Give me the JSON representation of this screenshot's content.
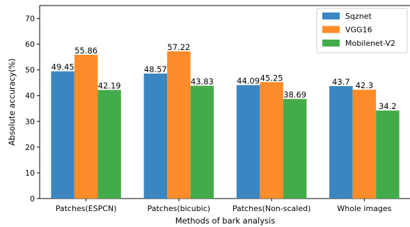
{
  "chart_data": {
    "type": "bar",
    "title": "",
    "xlabel": "Methods of bark analysis",
    "ylabel": "Absolute accuracy(%)",
    "ylim": [
      0,
      75
    ],
    "yticks": [
      0,
      10,
      20,
      30,
      40,
      50,
      60,
      70
    ],
    "categories": [
      "Patches(ESPCN)",
      "Patches(bicubic)",
      "Patches(Non-scaled)",
      "Whole images"
    ],
    "series": [
      {
        "name": "Sqznet",
        "color": "#3b86c0",
        "values": [
          49.45,
          48.57,
          44.09,
          43.7
        ],
        "labels": [
          "49.45",
          "48.57",
          "44.09",
          "43.7"
        ]
      },
      {
        "name": "VGG16",
        "color": "#ff8c2a",
        "values": [
          55.86,
          57.22,
          45.25,
          42.3
        ],
        "labels": [
          "55.86",
          "57.22",
          "45.25",
          "42.3"
        ]
      },
      {
        "name": "Mobilenet-V2",
        "color": "#44ab4a",
        "values": [
          42.19,
          43.83,
          38.69,
          34.2
        ],
        "labels": [
          "42.19",
          "43.83",
          "38.69",
          "34.2"
        ]
      }
    ],
    "legend_position": "top-right",
    "grid": false
  }
}
